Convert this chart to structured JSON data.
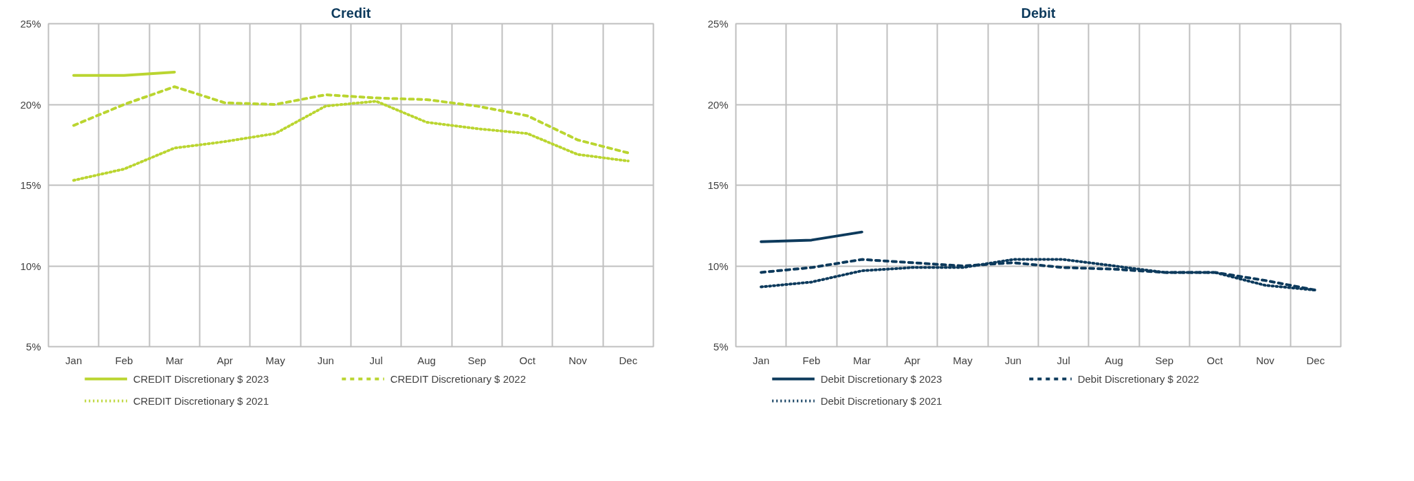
{
  "chart_data": [
    {
      "type": "line",
      "title": "Credit",
      "categories": [
        "Jan",
        "Feb",
        "Mar",
        "Apr",
        "May",
        "Jun",
        "Jul",
        "Aug",
        "Sep",
        "Oct",
        "Nov",
        "Dec"
      ],
      "ylim": [
        5,
        25
      ],
      "yticks": [
        {
          "value": 5,
          "label": "5%"
        },
        {
          "value": 10,
          "label": "10%"
        },
        {
          "value": 15,
          "label": "15%"
        },
        {
          "value": 20,
          "label": "20%"
        },
        {
          "value": 25,
          "label": "25%"
        }
      ],
      "grid": true,
      "legend": "bottom",
      "series": [
        {
          "name": "CREDIT Discretionary $ 2023",
          "color": "#bad530",
          "line_style": "solid",
          "values": [
            21.8,
            21.8,
            22.0,
            null,
            null,
            null,
            null,
            null,
            null,
            null,
            null,
            null
          ]
        },
        {
          "name": "CREDIT Discretionary $ 2022",
          "color": "#bad530",
          "line_style": "dashed",
          "values": [
            18.7,
            20.0,
            21.1,
            20.1,
            20.0,
            20.6,
            20.4,
            20.3,
            19.9,
            19.3,
            17.8,
            17.0
          ]
        },
        {
          "name": "CREDIT Discretionary $ 2021",
          "color": "#bad530",
          "line_style": "dotted",
          "values": [
            15.3,
            16.0,
            17.3,
            17.7,
            18.2,
            19.9,
            20.2,
            18.9,
            18.5,
            18.2,
            16.9,
            16.5
          ]
        }
      ]
    },
    {
      "type": "line",
      "title": "Debit",
      "categories": [
        "Jan",
        "Feb",
        "Mar",
        "Apr",
        "May",
        "Jun",
        "Jul",
        "Aug",
        "Sep",
        "Oct",
        "Nov",
        "Dec"
      ],
      "ylim": [
        5,
        25
      ],
      "yticks": [
        {
          "value": 5,
          "label": "5%"
        },
        {
          "value": 10,
          "label": "10%"
        },
        {
          "value": 15,
          "label": "15%"
        },
        {
          "value": 20,
          "label": "20%"
        },
        {
          "value": 25,
          "label": "25%"
        }
      ],
      "grid": true,
      "legend": "bottom",
      "series": [
        {
          "name": "Debit Discretionary $ 2023",
          "color": "#0d3a5c",
          "line_style": "solid",
          "values": [
            11.5,
            11.6,
            12.1,
            null,
            null,
            null,
            null,
            null,
            null,
            null,
            null,
            null
          ]
        },
        {
          "name": "Debit Discretionary $ 2022",
          "color": "#0d3a5c",
          "line_style": "dashed",
          "values": [
            9.6,
            9.9,
            10.4,
            10.2,
            10.0,
            10.2,
            9.9,
            9.8,
            9.6,
            9.6,
            9.1,
            8.5
          ]
        },
        {
          "name": "Debit Discretionary $ 2021",
          "color": "#0d3a5c",
          "line_style": "dotted",
          "values": [
            8.7,
            9.0,
            9.7,
            9.9,
            9.9,
            10.4,
            10.4,
            10.0,
            9.6,
            9.6,
            8.8,
            8.5
          ]
        }
      ]
    }
  ]
}
